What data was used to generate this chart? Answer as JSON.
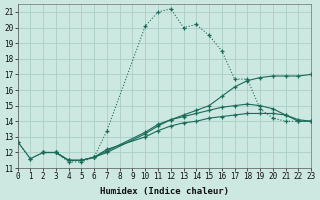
{
  "xlabel": "Humidex (Indice chaleur)",
  "xlim": [
    0,
    23
  ],
  "ylim": [
    11,
    21.5
  ],
  "xticks": [
    0,
    1,
    2,
    3,
    4,
    5,
    6,
    7,
    8,
    9,
    10,
    11,
    12,
    13,
    14,
    15,
    16,
    17,
    18,
    19,
    20,
    21,
    22,
    23
  ],
  "yticks": [
    11,
    12,
    13,
    14,
    15,
    16,
    17,
    18,
    19,
    20,
    21
  ],
  "background_color": "#cce8e0",
  "grid_color": "#aacfc7",
  "line_color": "#1a6b5a",
  "series": [
    {
      "x": [
        0,
        1,
        2,
        3,
        4,
        5,
        6,
        7,
        10,
        11,
        12,
        13,
        14,
        15,
        16,
        17,
        18,
        19,
        20,
        21,
        22,
        23
      ],
      "y": [
        12.7,
        11.6,
        12.0,
        12.0,
        11.4,
        11.4,
        11.7,
        13.4,
        20.1,
        21.0,
        21.2,
        20.0,
        20.2,
        19.5,
        18.5,
        16.7,
        16.7,
        14.8,
        14.2,
        14.0,
        14.0,
        14.0
      ],
      "linestyle": ":"
    },
    {
      "x": [
        2,
        3,
        4,
        5,
        6,
        7,
        10,
        11,
        12,
        13,
        14,
        15,
        16,
        17,
        18,
        19,
        20,
        21,
        22,
        23
      ],
      "y": [
        12.0,
        12.0,
        11.5,
        11.5,
        11.7,
        12.2,
        13.0,
        13.4,
        13.7,
        13.9,
        14.0,
        14.2,
        14.3,
        14.4,
        14.5,
        14.5,
        14.5,
        14.4,
        14.1,
        14.0
      ],
      "linestyle": "-"
    },
    {
      "x": [
        2,
        3,
        4,
        5,
        6,
        7,
        10,
        11,
        12,
        13,
        14,
        15,
        16,
        17,
        18,
        19,
        20,
        21,
        22,
        23
      ],
      "y": [
        12.0,
        12.0,
        11.5,
        11.5,
        11.7,
        12.0,
        13.2,
        13.7,
        14.1,
        14.3,
        14.5,
        14.7,
        14.9,
        15.0,
        15.1,
        15.0,
        14.8,
        14.4,
        14.0,
        14.0
      ],
      "linestyle": "-"
    },
    {
      "x": [
        0,
        1,
        2,
        3,
        4,
        5,
        6,
        7,
        10,
        11,
        12,
        13,
        14,
        15,
        16,
        17,
        18,
        19,
        20,
        21,
        22,
        23
      ],
      "y": [
        12.7,
        11.6,
        12.0,
        12.0,
        11.5,
        11.5,
        11.7,
        12.1,
        13.3,
        13.8,
        14.1,
        14.4,
        14.7,
        15.0,
        15.6,
        16.2,
        16.6,
        16.8,
        16.9,
        16.9,
        16.9,
        17.0
      ],
      "linestyle": "-"
    }
  ]
}
